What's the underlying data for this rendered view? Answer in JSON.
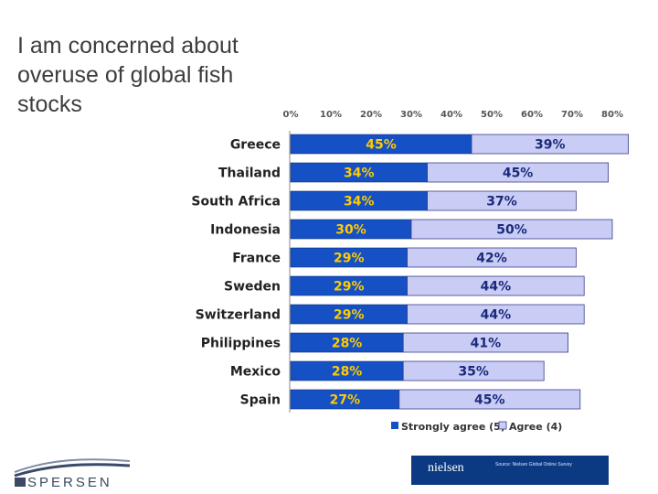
{
  "slide": {
    "title": "I am concerned about overuse of global fish stocks"
  },
  "chart_data": {
    "type": "bar",
    "orientation": "horizontal",
    "stacked": true,
    "categories": [
      "Greece",
      "Thailand",
      "South Africa",
      "Indonesia",
      "France",
      "Sweden",
      "Switzerland",
      "Philippines",
      "Mexico",
      "Spain"
    ],
    "series": [
      {
        "name": "Strongly agree (5)",
        "values": [
          45,
          34,
          34,
          30,
          29,
          29,
          29,
          28,
          28,
          27
        ],
        "color": "#1550c4"
      },
      {
        "name": "Agree (4)",
        "values": [
          39,
          45,
          37,
          50,
          42,
          44,
          44,
          41,
          35,
          45
        ],
        "color": "#c9ccf5"
      }
    ],
    "xlim": [
      0,
      80
    ],
    "xticks": [
      "0%",
      "10%",
      "20%",
      "30%",
      "40%",
      "50%",
      "60%",
      "70%",
      "80%"
    ],
    "value_suffix": "%",
    "legend_position": "bottom",
    "grid": false
  },
  "footer": {
    "left_logo_text": "SPERSEN",
    "right_logo_text": "nielsen",
    "source_note": "Source: Nielsen Global Online Survey"
  },
  "colors": {
    "strong": "#1550c4",
    "agree": "#c9ccf5",
    "strong_label": "#ffcc00",
    "agree_label": "#1a2a7c",
    "nielsen_bg": "#0b3a82"
  }
}
